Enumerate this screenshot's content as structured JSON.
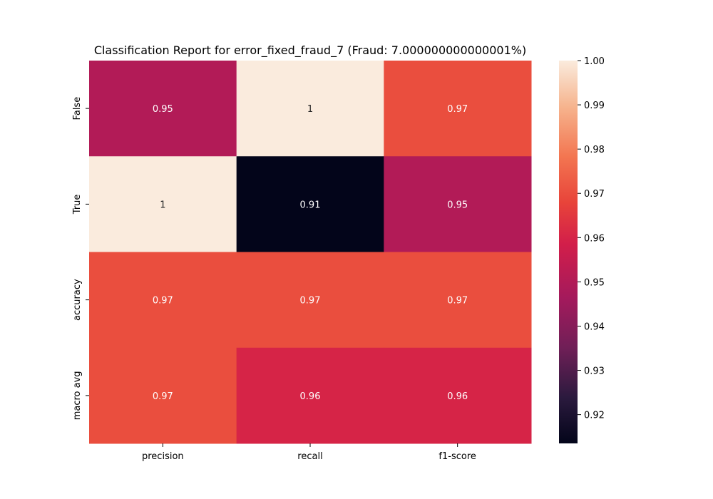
{
  "chart_data": {
    "type": "heatmap",
    "title": "Classification Report for error_fixed_fraud_7 (Fraud: 7.000000000000001%)",
    "xlabel": "",
    "ylabel": "",
    "x_categories": [
      "precision",
      "recall",
      "f1-score"
    ],
    "y_categories": [
      "False",
      "True",
      "accuracy",
      "macro avg"
    ],
    "values": [
      [
        0.95,
        1.0,
        0.97
      ],
      [
        1.0,
        0.91,
        0.95
      ],
      [
        0.97,
        0.97,
        0.97
      ],
      [
        0.97,
        0.96,
        0.96
      ]
    ],
    "cell_labels": [
      [
        "0.95",
        "1",
        "0.97"
      ],
      [
        "1",
        "0.91",
        "0.95"
      ],
      [
        "0.97",
        "0.97",
        "0.97"
      ],
      [
        "0.97",
        "0.96",
        "0.96"
      ]
    ],
    "colormap": "rocket",
    "colorbar": {
      "vmin": 0.9135,
      "vmax": 1.0,
      "ticks": [
        "0.92",
        "0.93",
        "0.94",
        "0.95",
        "0.96",
        "0.97",
        "0.98",
        "0.99",
        "1.00"
      ]
    }
  }
}
